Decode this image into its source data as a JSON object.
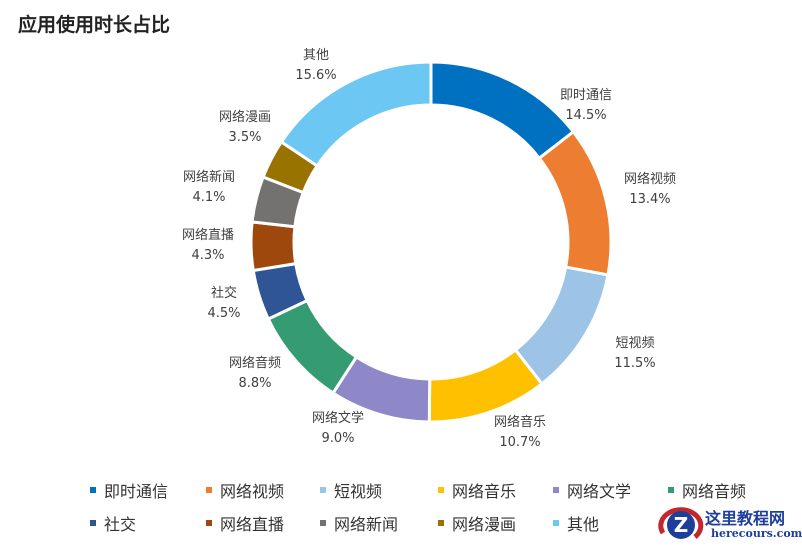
{
  "chart_data": {
    "type": "pie",
    "variant": "donut",
    "title": "应用使用时长占比",
    "categories": [
      "即时通信",
      "网络视频",
      "短视频",
      "网络音乐",
      "网络文学",
      "网络音频",
      "社交",
      "网络直播",
      "网络新闻",
      "网络漫画",
      "其他"
    ],
    "values": [
      14.5,
      13.4,
      11.5,
      10.7,
      9.0,
      8.8,
      4.5,
      4.3,
      4.1,
      3.5,
      15.6
    ],
    "value_labels": [
      "14.5%",
      "13.4%",
      "11.5%",
      "10.7%",
      "9.0%",
      "8.8%",
      "4.5%",
      "4.3%",
      "4.1%",
      "3.5%",
      "15.6%"
    ],
    "colors": [
      "#0070C0",
      "#ED7D31",
      "#9DC3E6",
      "#FFC000",
      "#8E88C8",
      "#359B73",
      "#2F5597",
      "#9E480E",
      "#747171",
      "#997300",
      "#6CC8F2"
    ],
    "legend_position": "bottom"
  },
  "watermark": {
    "name": "这里教程网",
    "url": "herecours.com"
  }
}
